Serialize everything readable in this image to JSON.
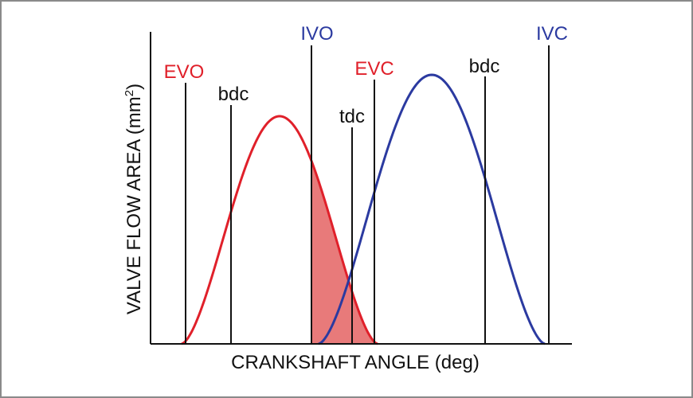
{
  "axes": {
    "x_title": "CRANKSHAFT ANGLE (deg)",
    "y_title_main": "VALVE FLOW AREA (mm",
    "y_title_sup": "2",
    "y_title_close": ")"
  },
  "markers": {
    "evo": "EVO",
    "bdc_1": "bdc",
    "ivo": "IVO",
    "tdc": "tdc",
    "evc": "EVC",
    "bdc_2": "bdc",
    "ivc": "IVC"
  },
  "curves": {
    "exhaust": {
      "name": "exhaust-valve-lift-curve",
      "color": "#e0202a"
    },
    "intake": {
      "name": "intake-valve-lift-curve",
      "color": "#2b3aa0"
    }
  },
  "colors": {
    "exhaust": "#e0202a",
    "intake": "#2b3aa0",
    "overlap_fill": "#e87a7a",
    "line": "#111111",
    "border": "#8a8a8a"
  }
}
